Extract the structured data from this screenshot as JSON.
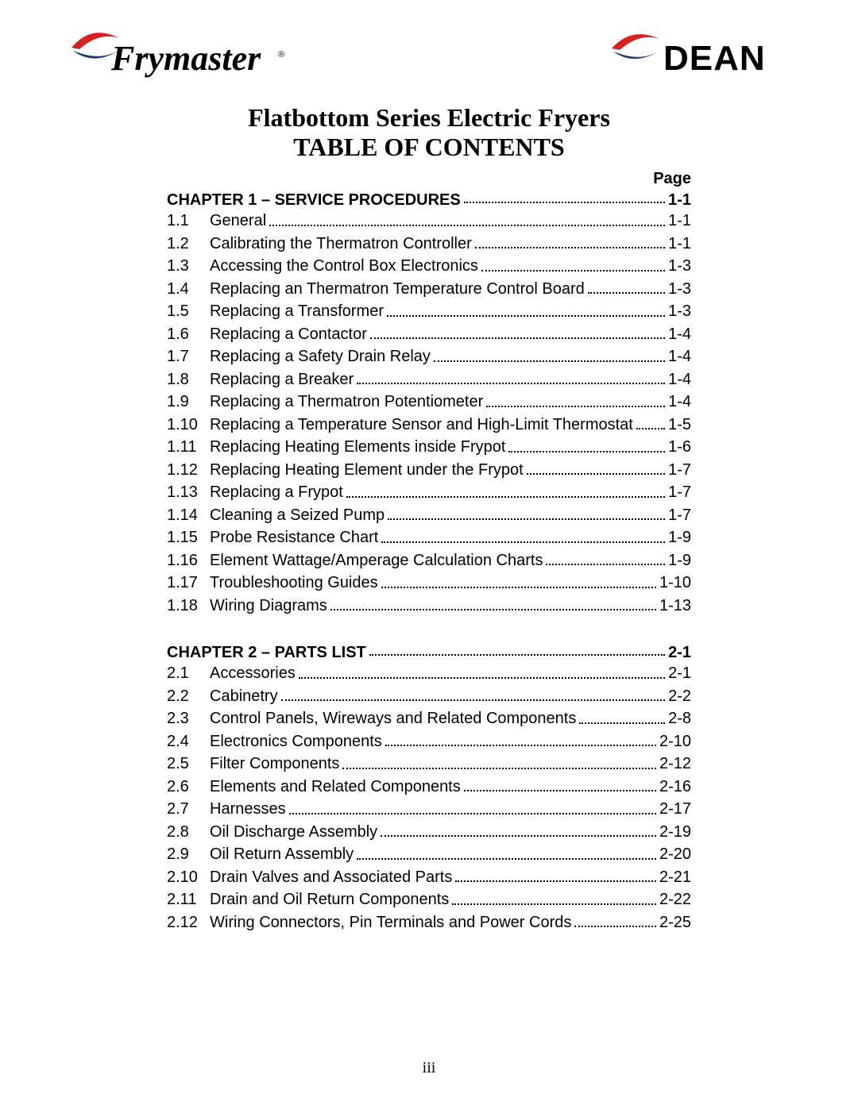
{
  "logos": {
    "left_text": "Frymaster",
    "right_text": "DEAN",
    "swoosh_red": "#d9221f",
    "swoosh_blue": "#1a3a7a",
    "trademark": "®"
  },
  "title_line1": "Flatbottom Series Electric Fryers",
  "title_line2": "TABLE OF CONTENTS",
  "page_header": "Page",
  "footer": "iii",
  "chapters": [
    {
      "label": "CHAPTER 1 – SERVICE PROCEDURES",
      "page": "1-1",
      "entries": [
        {
          "num": "1.1",
          "title": "General",
          "page": "1-1"
        },
        {
          "num": "1.2",
          "title": "Calibrating the Thermatron Controller",
          "page": "1-1"
        },
        {
          "num": "1.3",
          "title": "Accessing the Control Box Electronics",
          "page": "1-3"
        },
        {
          "num": "1.4",
          "title": "Replacing an Thermatron Temperature Control Board",
          "page": "1-3"
        },
        {
          "num": "1.5",
          "title": "Replacing a Transformer",
          "page": "1-3"
        },
        {
          "num": "1.6",
          "title": "Replacing a Contactor",
          "page": "1-4"
        },
        {
          "num": "1.7",
          "title": "Replacing a Safety Drain Relay",
          "page": "1-4"
        },
        {
          "num": "1.8",
          "title": "Replacing a Breaker",
          "page": "1-4"
        },
        {
          "num": "1.9",
          "title": "Replacing a Thermatron Potentiometer",
          "page": "1-4"
        },
        {
          "num": "1.10",
          "title": "Replacing a Temperature Sensor and High-Limit Thermostat",
          "page": "1-5"
        },
        {
          "num": "1.11",
          "title": "Replacing Heating Elements inside Frypot",
          "page": "1-6"
        },
        {
          "num": "1.12",
          "title": "Replacing Heating Element under the Frypot",
          "page": "1-7"
        },
        {
          "num": "1.13",
          "title": "Replacing a Frypot",
          "page": "1-7"
        },
        {
          "num": "1.14",
          "title": "Cleaning a Seized Pump",
          "page": "1-7"
        },
        {
          "num": "1.15",
          "title": "Probe Resistance Chart",
          "page": "1-9"
        },
        {
          "num": "1.16",
          "title": "Element Wattage/Amperage Calculation Charts",
          "page": "1-9"
        },
        {
          "num": "1.17",
          "title": "Troubleshooting Guides",
          "page": "1-10"
        },
        {
          "num": "1.18",
          "title": "Wiring Diagrams",
          "page": "1-13"
        }
      ]
    },
    {
      "label": "CHAPTER 2 – PARTS LIST",
      "page": "2-1",
      "entries": [
        {
          "num": "2.1",
          "title": "Accessories",
          "page": "2-1"
        },
        {
          "num": "2.2",
          "title": "Cabinetry",
          "page": "2-2"
        },
        {
          "num": "2.3",
          "title": "Control Panels, Wireways and Related Components",
          "page": "2-8"
        },
        {
          "num": "2.4",
          "title": "Electronics Components",
          "page": "2-10"
        },
        {
          "num": "2.5",
          "title": "Filter Components",
          "page": "2-12"
        },
        {
          "num": "2.6",
          "title": "Elements and Related Components",
          "page": "2-16"
        },
        {
          "num": "2.7",
          "title": "Harnesses",
          "page": "2-17"
        },
        {
          "num": "2.8",
          "title": "Oil Discharge Assembly",
          "page": "2-19"
        },
        {
          "num": "2.9",
          "title": "Oil Return Assembly",
          "page": "2-20"
        },
        {
          "num": "2.10",
          "title": "Drain Valves and Associated Parts",
          "page": "2-21"
        },
        {
          "num": "2.11",
          "title": "Drain and Oil Return Components",
          "page": "2-22"
        },
        {
          "num": "2.12",
          "title": "Wiring Connectors, Pin Terminals and Power Cords",
          "page": "2-25"
        }
      ]
    }
  ]
}
